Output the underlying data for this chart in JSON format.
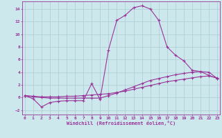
{
  "background_color": "#cce8ec",
  "grid_color": "#b0d0d8",
  "line_color": "#993399",
  "xlim": [
    -0.3,
    23.3
  ],
  "ylim": [
    -2.7,
    15.2
  ],
  "xticks": [
    0,
    1,
    2,
    3,
    4,
    5,
    6,
    7,
    8,
    9,
    10,
    11,
    12,
    13,
    14,
    15,
    16,
    17,
    18,
    19,
    20,
    21,
    22,
    23
  ],
  "yticks": [
    -2,
    0,
    2,
    4,
    6,
    8,
    10,
    12,
    14
  ],
  "xlabel": "Windchill (Refroidissement éolien,°C)",
  "line1_x": [
    0,
    1,
    2,
    3,
    4,
    5,
    6,
    7,
    8,
    9,
    10,
    11,
    12,
    13,
    14,
    15,
    16,
    17,
    18,
    19,
    20,
    21,
    22,
    23
  ],
  "line1_y": [
    0.3,
    -0.2,
    -1.5,
    -0.8,
    -0.6,
    -0.5,
    -0.5,
    -0.5,
    2.2,
    -0.3,
    7.5,
    12.2,
    13.0,
    14.2,
    14.5,
    14.0,
    12.2,
    8.0,
    6.7,
    5.8,
    4.3,
    4.1,
    3.5,
    3.0
  ],
  "line2_x": [
    0,
    1,
    2,
    3,
    4,
    5,
    6,
    7,
    8,
    9,
    10,
    11,
    12,
    13,
    14,
    15,
    16,
    17,
    18,
    19,
    20,
    21,
    22,
    23
  ],
  "line2_y": [
    0.3,
    0.1,
    0.0,
    -0.1,
    -0.1,
    -0.1,
    -0.1,
    -0.1,
    -0.1,
    -0.1,
    0.3,
    0.7,
    1.2,
    1.7,
    2.2,
    2.7,
    3.0,
    3.3,
    3.6,
    3.8,
    4.0,
    4.1,
    4.0,
    3.0
  ],
  "line3_x": [
    0,
    1,
    2,
    3,
    4,
    5,
    6,
    7,
    8,
    9,
    10,
    11,
    12,
    13,
    14,
    15,
    16,
    17,
    18,
    19,
    20,
    21,
    22,
    23
  ],
  "line3_y": [
    0.3,
    0.2,
    0.1,
    0.1,
    0.1,
    0.2,
    0.2,
    0.3,
    0.4,
    0.5,
    0.6,
    0.8,
    1.0,
    1.3,
    1.6,
    1.9,
    2.2,
    2.5,
    2.7,
    2.9,
    3.1,
    3.3,
    3.4,
    3.1
  ]
}
